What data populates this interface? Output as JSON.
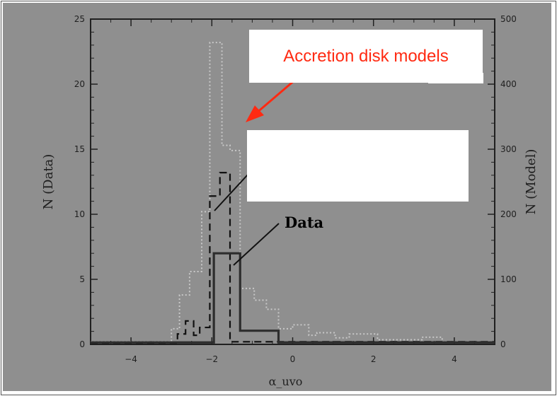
{
  "chart_data": {
    "type": "histogram",
    "xlabel": "α_uvo",
    "ylabel_left": "N (Data)",
    "ylabel_right": "N (Model)",
    "xlim": [
      -5,
      5
    ],
    "ylim_left": [
      0,
      25
    ],
    "ylim_right": [
      0,
      500
    ],
    "x_ticks": [
      -4,
      -2,
      0,
      2,
      4
    ],
    "y_ticks_left": [
      0,
      5,
      10,
      15,
      20,
      25
    ],
    "y_ticks_right": [
      0,
      100,
      200,
      300,
      400,
      500
    ],
    "series": [
      {
        "style": "solid-thick",
        "color": "#2d2d2d",
        "steps": [
          [
            -5,
            0.15
          ],
          [
            -1.95,
            0.15
          ],
          [
            -1.95,
            7
          ],
          [
            -1.3,
            7
          ],
          [
            -1.3,
            1.05
          ],
          [
            -0.35,
            1.05
          ],
          [
            -0.35,
            0.15
          ],
          [
            5,
            0.15
          ]
        ]
      },
      {
        "style": "dashed",
        "color": "#111111",
        "steps": [
          [
            -5,
            0.1
          ],
          [
            -2.85,
            0.1
          ],
          [
            -2.85,
            0.8
          ],
          [
            -2.65,
            0.8
          ],
          [
            -2.65,
            1.8
          ],
          [
            -2.45,
            1.8
          ],
          [
            -2.45,
            0.7
          ],
          [
            -2.3,
            0.7
          ],
          [
            -2.3,
            1.3
          ],
          [
            -2.05,
            1.3
          ],
          [
            -2.05,
            11.4
          ],
          [
            -1.8,
            11.4
          ],
          [
            -1.8,
            13.2
          ],
          [
            -1.55,
            13.2
          ],
          [
            -1.55,
            0.2
          ],
          [
            5,
            0.2
          ]
        ]
      },
      {
        "style": "dotted",
        "color": "#c8c8c8",
        "steps": [
          [
            -5,
            0.2
          ],
          [
            -3,
            0.2
          ],
          [
            -3,
            1.2
          ],
          [
            -2.8,
            1.2
          ],
          [
            -2.8,
            3.8
          ],
          [
            -2.55,
            3.8
          ],
          [
            -2.55,
            5.6
          ],
          [
            -2.25,
            5.6
          ],
          [
            -2.25,
            10.2
          ],
          [
            -2.05,
            10.2
          ],
          [
            -2.05,
            23.2
          ],
          [
            -1.75,
            23.2
          ],
          [
            -1.75,
            15.3
          ],
          [
            -1.55,
            15.3
          ],
          [
            -1.55,
            14.9
          ],
          [
            -1.3,
            14.9
          ],
          [
            -1.3,
            4.3
          ],
          [
            -0.95,
            4.3
          ],
          [
            -0.95,
            3.4
          ],
          [
            -0.65,
            3.4
          ],
          [
            -0.65,
            2.7
          ],
          [
            -0.35,
            2.7
          ],
          [
            -0.35,
            1.2
          ],
          [
            0.0,
            1.2
          ],
          [
            0.0,
            1.5
          ],
          [
            0.4,
            1.5
          ],
          [
            0.4,
            0.7
          ],
          [
            0.6,
            0.7
          ],
          [
            0.6,
            0.9
          ],
          [
            1.05,
            0.9
          ],
          [
            1.05,
            0.5
          ],
          [
            1.4,
            0.5
          ],
          [
            1.4,
            0.8
          ],
          [
            2.1,
            0.8
          ],
          [
            2.1,
            0.35
          ],
          [
            3.2,
            0.35
          ],
          [
            3.2,
            0.55
          ],
          [
            3.7,
            0.55
          ],
          [
            3.7,
            0.2
          ],
          [
            5,
            0.2
          ]
        ]
      }
    ],
    "annotations": [
      {
        "text": "Accretion disk models",
        "color": "#ff2a12",
        "font": "Liberation Sans"
      },
      {
        "text": "Data",
        "color": "#000000"
      }
    ]
  },
  "page": {
    "title": "",
    "bg_color": "#8f8f8f"
  }
}
